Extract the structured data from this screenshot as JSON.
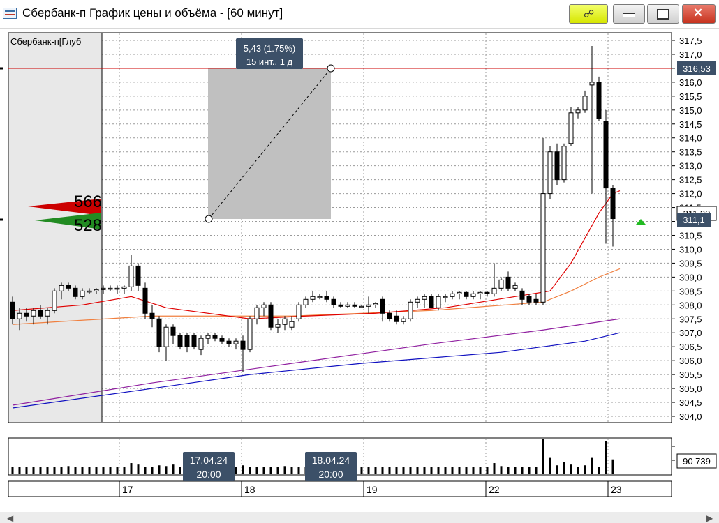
{
  "window": {
    "title": "Сбербанк-п График цены и объёма - [60 минут]",
    "icons": [
      "chart-window-icon",
      "link-icon",
      "minimize-icon",
      "maximize-icon",
      "close-icon"
    ]
  },
  "chart_data": [
    {
      "type": "candlestick",
      "legend": "Сбербанк-п[Глуб",
      "ylim": [
        304.0,
        317.5
      ],
      "ytick_labels": [
        "304,0",
        "304,5",
        "305,0",
        "305,5",
        "306,0",
        "306,5",
        "307,0",
        "307,5",
        "308,0",
        "308,5",
        "309,0",
        "309,5",
        "310,0",
        "310,5",
        "311,0",
        "311,5",
        "312,0",
        "312,5",
        "313,0",
        "313,5",
        "314,0",
        "314,5",
        "315,0",
        "315,5",
        "316,0",
        "316,5",
        "317,0",
        "317,5"
      ],
      "x_tick_labels": [
        "17",
        "18",
        "19",
        "22",
        "23"
      ],
      "grid": true,
      "last_price_label": "311,1",
      "price_level_label": "316,53",
      "hidden_label": "311,30",
      "colors": {
        "up": "#ffffff",
        "down": "#000000",
        "ma_fast": "#e00000",
        "ma_mid": "#f08040",
        "ma_slow": "#9020a0",
        "ma_long": "#1010c0",
        "level_line": "#cc0000",
        "orderbook_bid": "#228b22",
        "orderbook_ask": "#cc0000"
      },
      "order_book": {
        "ask_volume": "566",
        "bid_volume": "528"
      },
      "measurement": {
        "label_line1": "5,43 (1.75%)",
        "label_line2": "15 инт., 1 д",
        "from_price": 311.1,
        "to_price": 316.53
      },
      "candles": [
        {
          "o": 308.1,
          "h": 308.3,
          "l": 307.3,
          "c": 307.5
        },
        {
          "o": 307.5,
          "h": 307.9,
          "l": 307.1,
          "c": 307.7
        },
        {
          "o": 307.7,
          "h": 307.9,
          "l": 307.4,
          "c": 307.6
        },
        {
          "o": 307.6,
          "h": 307.9,
          "l": 307.3,
          "c": 307.8
        },
        {
          "o": 307.8,
          "h": 308.0,
          "l": 307.5,
          "c": 307.6
        },
        {
          "o": 307.6,
          "h": 307.9,
          "l": 307.3,
          "c": 307.8
        },
        {
          "o": 307.8,
          "h": 308.6,
          "l": 307.7,
          "c": 308.5
        },
        {
          "o": 308.5,
          "h": 308.8,
          "l": 308.2,
          "c": 308.7
        },
        {
          "o": 308.7,
          "h": 308.8,
          "l": 308.5,
          "c": 308.6
        },
        {
          "o": 308.6,
          "h": 308.7,
          "l": 308.2,
          "c": 308.3
        },
        {
          "o": 308.3,
          "h": 308.6,
          "l": 308.2,
          "c": 308.5
        },
        {
          "o": 308.5,
          "h": 308.6,
          "l": 308.4,
          "c": 308.5
        },
        {
          "o": 308.5,
          "h": 308.6,
          "l": 308.4,
          "c": 308.55
        },
        {
          "o": 308.55,
          "h": 308.7,
          "l": 308.4,
          "c": 308.6
        },
        {
          "o": 308.6,
          "h": 308.7,
          "l": 308.5,
          "c": 308.6
        },
        {
          "o": 308.6,
          "h": 308.7,
          "l": 308.4,
          "c": 308.6
        },
        {
          "o": 308.6,
          "h": 308.7,
          "l": 308.4,
          "c": 308.65
        },
        {
          "o": 308.65,
          "h": 309.8,
          "l": 308.5,
          "c": 309.4
        },
        {
          "o": 309.4,
          "h": 309.5,
          "l": 308.5,
          "c": 308.7
        },
        {
          "o": 308.6,
          "h": 308.8,
          "l": 307.5,
          "c": 307.7
        },
        {
          "o": 307.7,
          "h": 308.0,
          "l": 307.2,
          "c": 307.5
        },
        {
          "o": 307.5,
          "h": 307.6,
          "l": 306.3,
          "c": 306.5
        },
        {
          "o": 306.5,
          "h": 307.3,
          "l": 306.0,
          "c": 307.2
        },
        {
          "o": 307.2,
          "h": 307.3,
          "l": 306.6,
          "c": 306.9
        },
        {
          "o": 306.9,
          "h": 307.0,
          "l": 306.4,
          "c": 306.5
        },
        {
          "o": 306.9,
          "h": 307.0,
          "l": 306.3,
          "c": 306.5
        },
        {
          "o": 306.9,
          "h": 307.0,
          "l": 306.4,
          "c": 306.5
        },
        {
          "o": 306.4,
          "h": 306.9,
          "l": 306.2,
          "c": 306.8
        },
        {
          "o": 306.8,
          "h": 307.0,
          "l": 306.6,
          "c": 306.9
        },
        {
          "o": 306.9,
          "h": 307.0,
          "l": 306.7,
          "c": 306.8
        },
        {
          "o": 306.8,
          "h": 306.9,
          "l": 306.6,
          "c": 306.7
        },
        {
          "o": 306.7,
          "h": 306.8,
          "l": 306.5,
          "c": 306.6
        },
        {
          "o": 306.6,
          "h": 306.8,
          "l": 306.4,
          "c": 306.7
        },
        {
          "o": 306.7,
          "h": 306.9,
          "l": 305.6,
          "c": 306.4
        },
        {
          "o": 306.4,
          "h": 307.6,
          "l": 306.3,
          "c": 307.5
        },
        {
          "o": 307.5,
          "h": 308.0,
          "l": 307.3,
          "c": 307.9
        },
        {
          "o": 307.9,
          "h": 308.1,
          "l": 307.6,
          "c": 308.0
        },
        {
          "o": 308.0,
          "h": 308.1,
          "l": 307.1,
          "c": 307.2
        },
        {
          "o": 307.2,
          "h": 307.5,
          "l": 307.0,
          "c": 307.3
        },
        {
          "o": 307.3,
          "h": 307.6,
          "l": 307.1,
          "c": 307.5
        },
        {
          "o": 307.2,
          "h": 307.6,
          "l": 307.1,
          "c": 307.4
        },
        {
          "o": 307.5,
          "h": 308.1,
          "l": 307.4,
          "c": 308.0
        },
        {
          "o": 308.0,
          "h": 308.3,
          "l": 307.9,
          "c": 308.2
        },
        {
          "o": 308.2,
          "h": 308.5,
          "l": 308.1,
          "c": 308.3
        },
        {
          "o": 308.3,
          "h": 308.4,
          "l": 308.2,
          "c": 308.3
        },
        {
          "o": 308.3,
          "h": 308.5,
          "l": 308.1,
          "c": 308.2
        },
        {
          "o": 308.2,
          "h": 308.3,
          "l": 307.9,
          "c": 308.0
        },
        {
          "o": 308.0,
          "h": 308.1,
          "l": 307.9,
          "c": 307.95
        },
        {
          "o": 307.95,
          "h": 308.1,
          "l": 307.9,
          "c": 308.0
        },
        {
          "o": 308.0,
          "h": 308.1,
          "l": 307.9,
          "c": 307.95
        },
        {
          "o": 307.95,
          "h": 308.0,
          "l": 307.9,
          "c": 307.95
        },
        {
          "o": 307.95,
          "h": 308.3,
          "l": 307.7,
          "c": 308.0
        },
        {
          "o": 308.0,
          "h": 308.1,
          "l": 307.9,
          "c": 308.05
        },
        {
          "o": 308.2,
          "h": 308.3,
          "l": 307.4,
          "c": 307.7
        },
        {
          "o": 307.7,
          "h": 307.8,
          "l": 307.4,
          "c": 307.5
        },
        {
          "o": 307.6,
          "h": 307.8,
          "l": 307.3,
          "c": 307.4
        },
        {
          "o": 307.4,
          "h": 307.6,
          "l": 307.3,
          "c": 307.5
        },
        {
          "o": 307.5,
          "h": 308.2,
          "l": 307.4,
          "c": 308.1
        },
        {
          "o": 308.1,
          "h": 308.3,
          "l": 307.9,
          "c": 308.2
        },
        {
          "o": 308.2,
          "h": 308.4,
          "l": 307.9,
          "c": 308.3
        },
        {
          "o": 308.3,
          "h": 308.4,
          "l": 307.9,
          "c": 307.9
        },
        {
          "o": 307.9,
          "h": 308.4,
          "l": 307.8,
          "c": 308.3
        },
        {
          "o": 308.3,
          "h": 308.4,
          "l": 308.1,
          "c": 308.3
        },
        {
          "o": 308.3,
          "h": 308.5,
          "l": 308.2,
          "c": 308.4
        },
        {
          "o": 308.4,
          "h": 308.5,
          "l": 308.2,
          "c": 308.45
        },
        {
          "o": 308.45,
          "h": 308.5,
          "l": 308.2,
          "c": 308.3
        },
        {
          "o": 308.3,
          "h": 308.5,
          "l": 308.2,
          "c": 308.4
        },
        {
          "o": 308.4,
          "h": 308.5,
          "l": 308.2,
          "c": 308.45
        },
        {
          "o": 308.45,
          "h": 308.5,
          "l": 308.3,
          "c": 308.4
        },
        {
          "o": 308.4,
          "h": 309.5,
          "l": 308.3,
          "c": 308.6
        },
        {
          "o": 308.6,
          "h": 309.0,
          "l": 308.5,
          "c": 308.9
        },
        {
          "o": 309.0,
          "h": 309.2,
          "l": 308.5,
          "c": 308.6
        },
        {
          "o": 308.6,
          "h": 308.8,
          "l": 308.5,
          "c": 308.7
        },
        {
          "o": 308.5,
          "h": 308.6,
          "l": 308.0,
          "c": 308.2
        },
        {
          "o": 308.3,
          "h": 308.4,
          "l": 308.0,
          "c": 308.1
        },
        {
          "o": 308.2,
          "h": 308.4,
          "l": 308.0,
          "c": 308.1
        },
        {
          "o": 308.1,
          "h": 314.0,
          "l": 308.0,
          "c": 312.0
        },
        {
          "o": 312.0,
          "h": 313.7,
          "l": 311.8,
          "c": 313.5
        },
        {
          "o": 313.5,
          "h": 313.8,
          "l": 312.3,
          "c": 312.5
        },
        {
          "o": 312.5,
          "h": 313.8,
          "l": 312.4,
          "c": 313.7
        },
        {
          "o": 313.8,
          "h": 315.1,
          "l": 313.7,
          "c": 314.9
        },
        {
          "o": 314.9,
          "h": 315.1,
          "l": 314.7,
          "c": 315.0
        },
        {
          "o": 315.0,
          "h": 315.7,
          "l": 314.9,
          "c": 315.5
        },
        {
          "o": 315.9,
          "h": 317.3,
          "l": 312.0,
          "c": 316.0
        },
        {
          "o": 316.0,
          "h": 316.2,
          "l": 314.6,
          "c": 314.7
        },
        {
          "o": 314.6,
          "h": 315.0,
          "l": 310.2,
          "c": 312.2
        },
        {
          "o": 312.2,
          "h": 312.3,
          "l": 310.1,
          "c": 311.1
        }
      ],
      "ma_fast": [
        [
          0,
          307.8
        ],
        [
          10,
          308.0
        ],
        [
          17,
          308.3
        ],
        [
          22,
          307.9
        ],
        [
          34,
          307.5
        ],
        [
          42,
          307.6
        ],
        [
          52,
          307.7
        ],
        [
          62,
          307.9
        ],
        [
          72,
          308.3
        ],
        [
          77,
          308.5
        ],
        [
          80,
          309.5
        ],
        [
          84,
          311.3
        ],
        [
          86,
          312.0
        ],
        [
          87,
          312.1
        ]
      ],
      "ma_mid": [
        [
          0,
          307.3
        ],
        [
          20,
          307.6
        ],
        [
          40,
          307.6
        ],
        [
          60,
          307.8
        ],
        [
          76,
          308.1
        ],
        [
          80,
          308.5
        ],
        [
          84,
          309.0
        ],
        [
          87,
          309.3
        ]
      ],
      "ma_slow": [
        [
          0,
          304.4
        ],
        [
          20,
          305.2
        ],
        [
          40,
          305.9
        ],
        [
          60,
          306.6
        ],
        [
          76,
          307.1
        ],
        [
          87,
          307.5
        ]
      ],
      "ma_long": [
        [
          0,
          304.3
        ],
        [
          20,
          305.0
        ],
        [
          34,
          305.5
        ],
        [
          50,
          305.9
        ],
        [
          70,
          306.3
        ],
        [
          76,
          306.5
        ],
        [
          82,
          306.7
        ],
        [
          87,
          307.0
        ]
      ]
    },
    {
      "type": "bar",
      "name": "volume",
      "last_value_label": "90 739",
      "values": [
        1,
        1,
        1,
        1,
        1,
        1,
        1,
        1,
        1.1,
        1,
        1,
        1,
        1,
        1,
        1,
        1,
        1,
        1.5,
        1.3,
        1,
        1,
        1.2,
        1.1,
        1.3,
        1,
        1,
        1,
        1.1,
        1,
        1,
        1,
        1,
        1,
        1.2,
        1,
        1,
        1,
        1,
        1,
        1.1,
        1,
        1,
        1,
        1,
        1,
        1,
        1,
        1,
        1,
        1,
        1,
        1,
        1,
        1,
        1,
        1,
        1,
        1,
        1,
        1,
        1,
        1,
        1,
        1,
        1,
        1,
        1,
        1,
        1,
        1.5,
        1.1,
        1,
        1,
        1,
        1,
        1,
        4.7,
        2.2,
        1.2,
        1.6,
        1.3,
        1,
        1.2,
        2.2,
        1,
        4.5,
        2
      ]
    }
  ],
  "date_labels": [
    {
      "date": "17.04.24",
      "time": "20:00"
    },
    {
      "date": "18.04.24",
      "time": "20:00"
    }
  ]
}
